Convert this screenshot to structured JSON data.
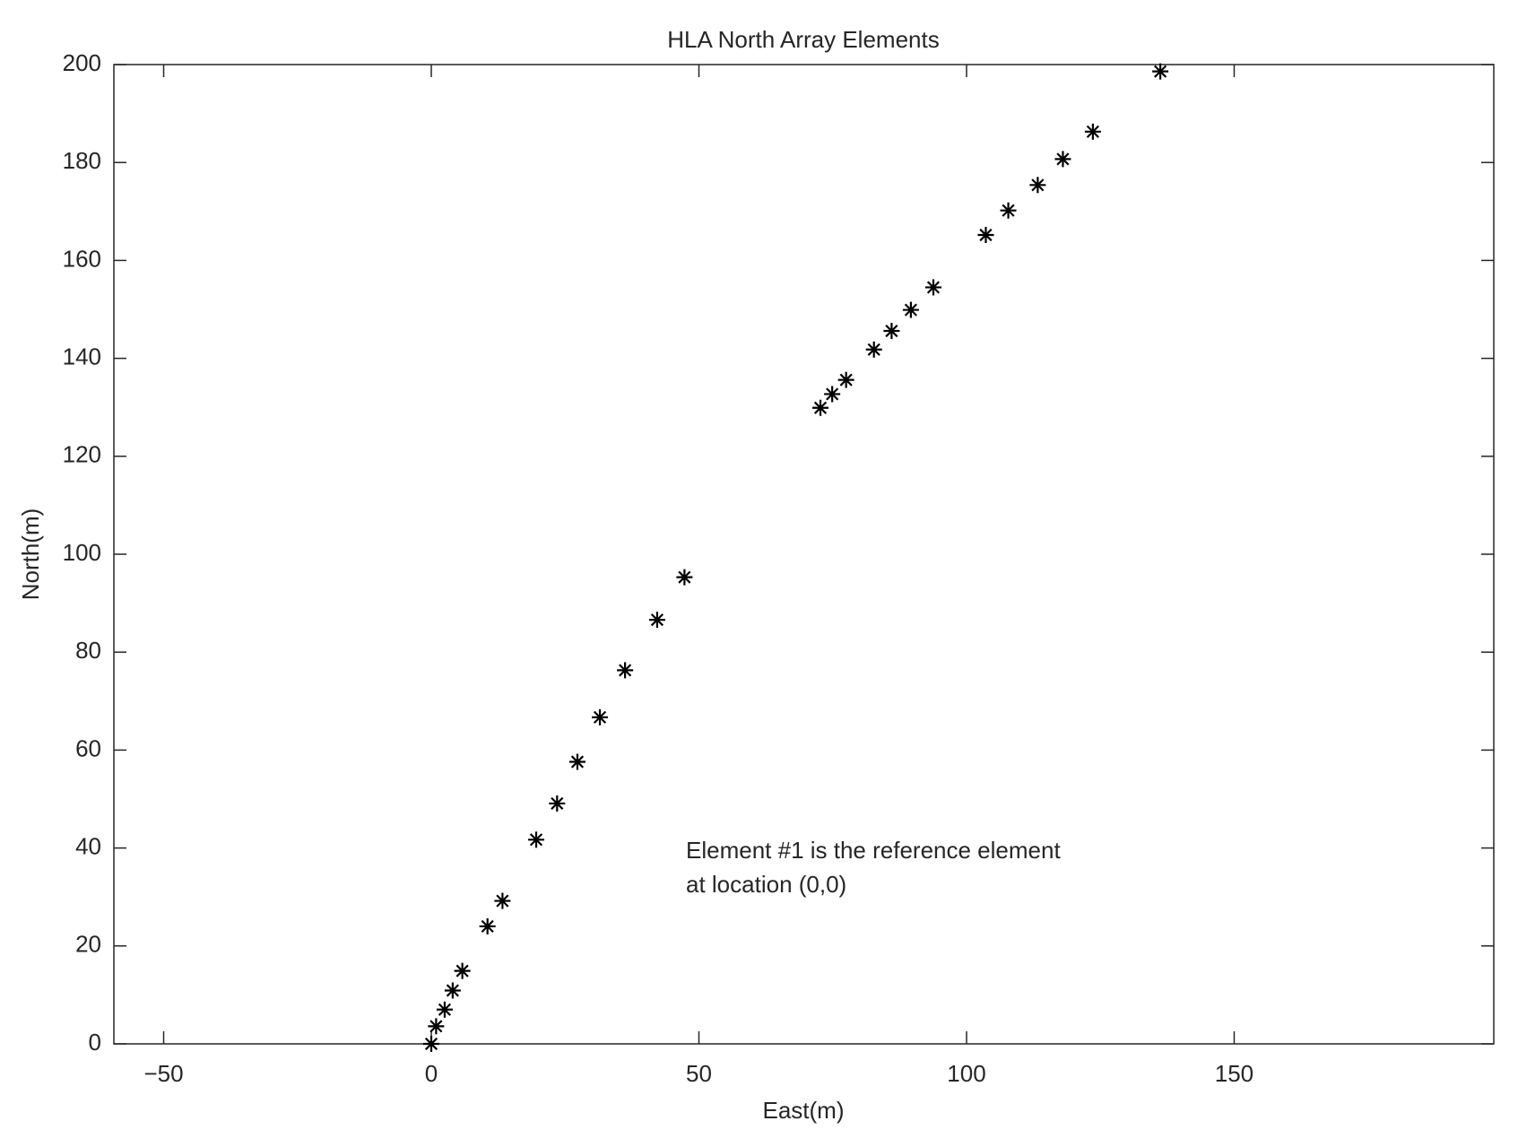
{
  "chart_data": {
    "type": "scatter",
    "title": "HLA North Array Elements",
    "xlabel": "East(m)",
    "ylabel": "North(m)",
    "annotation": [
      "Element #1 is the reference element",
      "at location (0,0)"
    ],
    "marker": "asterisk",
    "color": "#000000",
    "x": [
      0,
      0.9,
      2.5,
      4.0,
      5.8,
      10.5,
      13.3,
      19.6,
      23.5,
      27.3,
      31.5,
      36.2,
      42.2,
      47.3,
      72.7,
      74.9,
      77.5,
      82.7,
      86.0,
      89.6,
      93.8,
      103.6,
      107.8,
      113.3,
      118.0,
      123.6,
      136.2
    ],
    "values": [
      0,
      3.6,
      7.0,
      10.9,
      14.9,
      24.0,
      29.2,
      41.7,
      49.1,
      57.6,
      66.7,
      76.3,
      86.6,
      95.3,
      129.9,
      132.7,
      135.6,
      141.8,
      145.6,
      149.9,
      154.5,
      165.2,
      170.2,
      175.4,
      180.7,
      186.3,
      198.6
    ],
    "xlim": [
      -59.3,
      198.5
    ],
    "ylim": [
      0,
      200
    ],
    "xticks": [
      {
        "value": -50,
        "label": "−50"
      },
      0,
      50,
      100,
      150
    ],
    "yticks": [
      0,
      20,
      40,
      60,
      80,
      100,
      120,
      140,
      160,
      180,
      200
    ],
    "grid": false
  }
}
